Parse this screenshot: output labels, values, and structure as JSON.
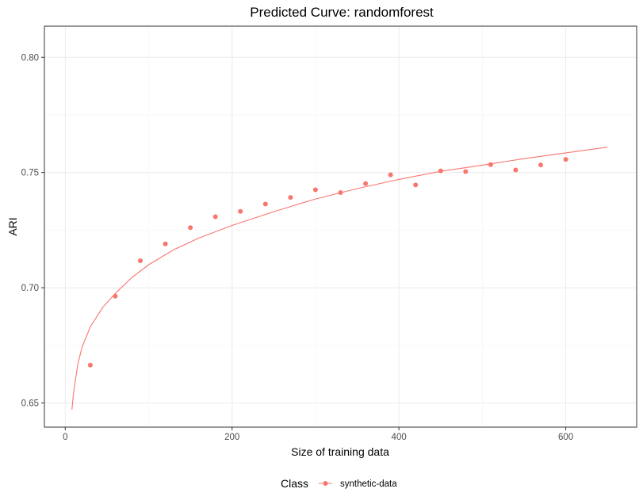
{
  "chart_data": {
    "type": "scatter",
    "title": "Predicted Curve: randomforest",
    "xlabel": "Size of training data",
    "ylabel": "ARI",
    "xlim": [
      -25,
      685
    ],
    "ylim": [
      0.6395,
      0.8135
    ],
    "xticks": [
      0,
      200,
      400,
      600
    ],
    "xtick_labels": [
      "0",
      "200",
      "400",
      "600"
    ],
    "yticks": [
      0.65,
      0.7,
      0.75,
      0.8
    ],
    "ytick_labels": [
      "0.65",
      "0.70",
      "0.75",
      "0.80"
    ],
    "grid": true,
    "legend": {
      "title": "Class",
      "position": "bottom"
    },
    "series": [
      {
        "name": "synthetic-data",
        "color": "#F8766D",
        "points": [
          {
            "x": 30,
            "y": 0.6664
          },
          {
            "x": 60,
            "y": 0.6963
          },
          {
            "x": 90,
            "y": 0.7117
          },
          {
            "x": 120,
            "y": 0.719
          },
          {
            "x": 150,
            "y": 0.7261
          },
          {
            "x": 180,
            "y": 0.7308
          },
          {
            "x": 210,
            "y": 0.7331
          },
          {
            "x": 240,
            "y": 0.7363
          },
          {
            "x": 270,
            "y": 0.7392
          },
          {
            "x": 300,
            "y": 0.7425
          },
          {
            "x": 330,
            "y": 0.7413
          },
          {
            "x": 360,
            "y": 0.7452
          },
          {
            "x": 390,
            "y": 0.749
          },
          {
            "x": 420,
            "y": 0.7446
          },
          {
            "x": 450,
            "y": 0.7507
          },
          {
            "x": 480,
            "y": 0.7504
          },
          {
            "x": 510,
            "y": 0.7534
          },
          {
            "x": 540,
            "y": 0.7511
          },
          {
            "x": 570,
            "y": 0.7533
          },
          {
            "x": 600,
            "y": 0.7557
          }
        ],
        "fitted_curve": [
          {
            "x": 8,
            "y": 0.6471
          },
          {
            "x": 10,
            "y": 0.6545
          },
          {
            "x": 15,
            "y": 0.6667
          },
          {
            "x": 20,
            "y": 0.674
          },
          {
            "x": 30,
            "y": 0.683
          },
          {
            "x": 45,
            "y": 0.6915
          },
          {
            "x": 60,
            "y": 0.6975
          },
          {
            "x": 80,
            "y": 0.7045
          },
          {
            "x": 100,
            "y": 0.71
          },
          {
            "x": 130,
            "y": 0.7165
          },
          {
            "x": 160,
            "y": 0.7215
          },
          {
            "x": 200,
            "y": 0.727
          },
          {
            "x": 250,
            "y": 0.733
          },
          {
            "x": 300,
            "y": 0.7385
          },
          {
            "x": 350,
            "y": 0.743
          },
          {
            "x": 400,
            "y": 0.747
          },
          {
            "x": 450,
            "y": 0.7505
          },
          {
            "x": 500,
            "y": 0.7532
          },
          {
            "x": 550,
            "y": 0.756
          },
          {
            "x": 600,
            "y": 0.7585
          },
          {
            "x": 650,
            "y": 0.761
          }
        ]
      }
    ]
  }
}
